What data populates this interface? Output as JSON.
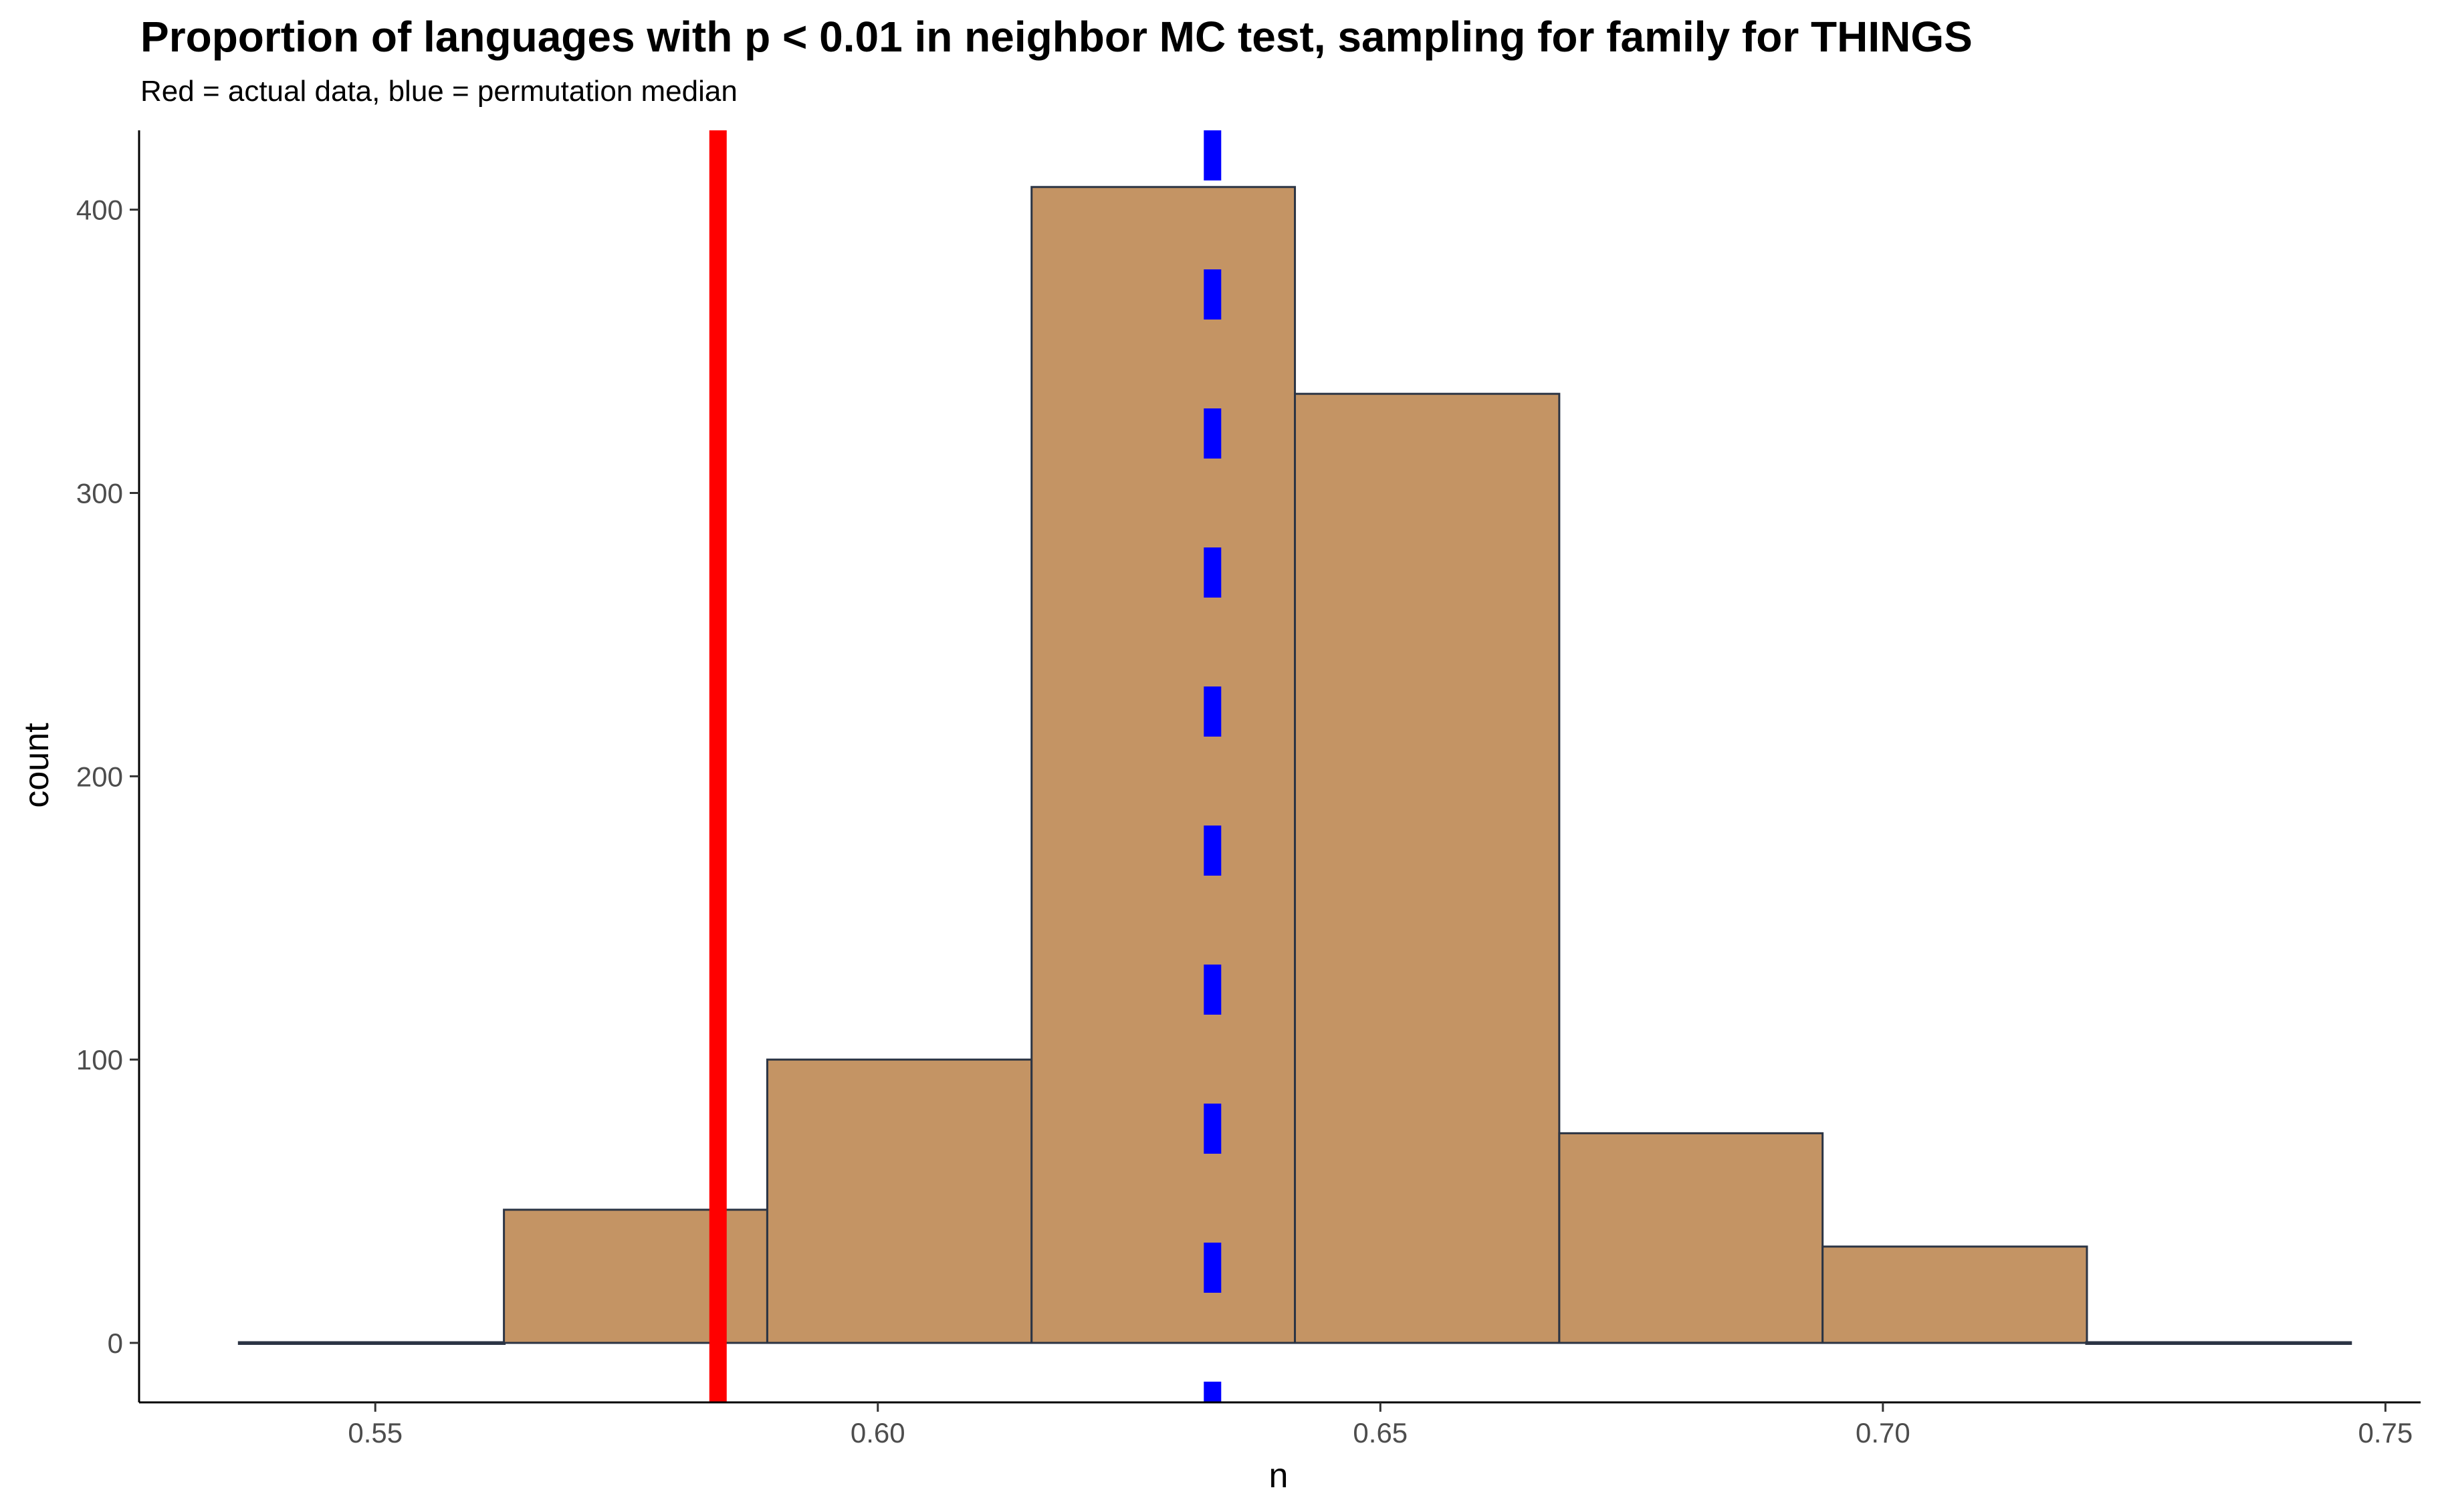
{
  "chart_data": {
    "type": "bar",
    "title": "Proportion of languages with p < 0.01 in neighbor MC test, sampling for family for THINGS",
    "subtitle": "Red = actual data, blue = permutation median",
    "xlabel": "n",
    "ylabel": "count",
    "xlim": [
      0.5265,
      0.7535
    ],
    "ylim": [
      -21,
      428
    ],
    "x_ticks": [
      0.55,
      0.6,
      0.65,
      0.7,
      0.75
    ],
    "x_tick_labels": [
      "0.55",
      "0.60",
      "0.65",
      "0.70",
      "0.75"
    ],
    "y_ticks": [
      0,
      100,
      200,
      300,
      400
    ],
    "y_tick_labels": [
      "0",
      "100",
      "200",
      "300",
      "400"
    ],
    "bins": [
      {
        "x0": 0.5365,
        "x1": 0.5628,
        "count": 0
      },
      {
        "x0": 0.5628,
        "x1": 0.589,
        "count": 47
      },
      {
        "x0": 0.589,
        "x1": 0.6153,
        "count": 100
      },
      {
        "x0": 0.6153,
        "x1": 0.6415,
        "count": 408
      },
      {
        "x0": 0.6415,
        "x1": 0.6678,
        "count": 335
      },
      {
        "x0": 0.6678,
        "x1": 0.694,
        "count": 74
      },
      {
        "x0": 0.694,
        "x1": 0.7203,
        "count": 34
      },
      {
        "x0": 0.7203,
        "x1": 0.7465,
        "count": 0
      }
    ],
    "reference_lines": [
      {
        "name": "actual data",
        "x": 0.5841,
        "color": "#ff0000",
        "style": "solid"
      },
      {
        "name": "permutation median",
        "x": 0.6333,
        "color": "#0000ff",
        "style": "dashed"
      }
    ],
    "bar_fill": "#c49464",
    "bar_outline": "#2b3444",
    "grid": false,
    "legend": "none"
  }
}
